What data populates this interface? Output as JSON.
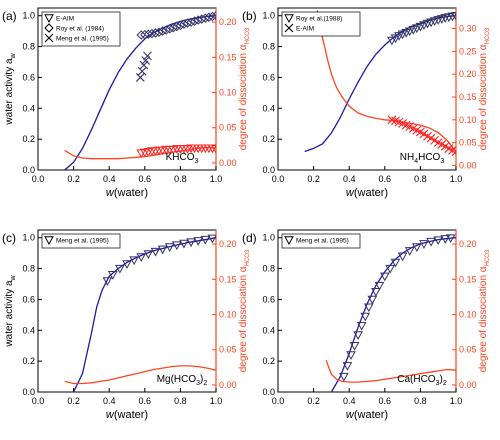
{
  "figure": {
    "colors": {
      "model": "#1a1aaa",
      "dissociation": "#ff4422",
      "axis": "#000000",
      "right_axis": "#ff4422",
      "marker_left": "#333366",
      "marker_right": "#ff2222"
    }
  },
  "chart_data": [
    {
      "type": "line",
      "panel_label": "(a)",
      "compound": "KHCO",
      "compound_sub": "3",
      "xlabel_italic": "w",
      "xlabel_rest": "(water)",
      "ylabel": "water activity a",
      "ylabel_sub": "w",
      "y2label": "degree of dissociation  α",
      "y2label_sub": "HCO3",
      "xlim": [
        0.0,
        1.0
      ],
      "ylim": [
        0.0,
        1.05
      ],
      "y2lim": [
        -0.01,
        0.22
      ],
      "xticks": [
        "0.0",
        "0.2",
        "0.4",
        "0.6",
        "0.8",
        "1.0"
      ],
      "yticks": [
        "0.0",
        "0.2",
        "0.4",
        "0.6",
        "0.8",
        "1.0"
      ],
      "y2ticks": [
        "0.00",
        "0.05",
        "0.10",
        "0.15",
        "0.20"
      ],
      "legend": [
        {
          "marker": "triangle-down",
          "label": "E-AIM"
        },
        {
          "marker": "diamond",
          "label": "Roy et al. (1984)"
        },
        {
          "marker": "cross",
          "label": "Meng et al. (1995)"
        }
      ],
      "series": [
        {
          "kind": "model_aw",
          "x": [
            0.15,
            0.2,
            0.25,
            0.3,
            0.35,
            0.4,
            0.45,
            0.5,
            0.55,
            0.6,
            0.65,
            0.7,
            0.75,
            0.8,
            0.85,
            0.9,
            0.95,
            1.0
          ],
          "y": [
            0.0,
            0.05,
            0.14,
            0.26,
            0.39,
            0.52,
            0.63,
            0.72,
            0.79,
            0.85,
            0.89,
            0.92,
            0.945,
            0.963,
            0.977,
            0.988,
            0.995,
            1.0
          ]
        },
        {
          "kind": "model_alpha",
          "x": [
            0.15,
            0.2,
            0.25,
            0.3,
            0.35,
            0.4,
            0.45,
            0.5,
            0.55,
            0.6,
            0.65,
            0.7,
            0.75,
            0.8,
            0.85,
            0.9,
            0.95,
            1.0
          ],
          "y": [
            0.018,
            0.01,
            0.007,
            0.006,
            0.006,
            0.006,
            0.006,
            0.007,
            0.008,
            0.009,
            0.011,
            0.013,
            0.015,
            0.017,
            0.019,
            0.021,
            0.022,
            0.021
          ]
        },
        {
          "kind": "markers_aw",
          "marker": "diamond",
          "x": [
            0.58,
            0.6,
            0.62,
            0.64,
            0.66,
            0.68,
            0.7,
            0.72,
            0.74,
            0.76,
            0.78,
            0.8,
            0.82,
            0.84,
            0.86,
            0.88,
            0.9,
            0.92,
            0.94,
            0.96,
            0.98,
            1.0
          ],
          "y": [
            0.875,
            0.877,
            0.88,
            0.884,
            0.888,
            0.893,
            0.9,
            0.907,
            0.915,
            0.922,
            0.93,
            0.937,
            0.945,
            0.952,
            0.958,
            0.965,
            0.972,
            0.978,
            0.984,
            0.99,
            0.995,
            1.0
          ]
        },
        {
          "kind": "markers_aw",
          "marker": "cross",
          "x": [
            0.575,
            0.585,
            0.595,
            0.605,
            0.615
          ],
          "y": [
            0.6,
            0.64,
            0.68,
            0.71,
            0.74
          ]
        },
        {
          "kind": "markers_alpha",
          "marker": "triangle-down",
          "x": [
            0.58,
            0.6,
            0.62,
            0.64,
            0.66,
            0.68,
            0.7,
            0.72,
            0.74,
            0.76,
            0.78,
            0.8,
            0.82,
            0.84,
            0.86,
            0.88,
            0.9,
            0.92,
            0.94,
            0.96,
            0.98,
            1.0
          ],
          "y": [
            0.014,
            0.015,
            0.016,
            0.017,
            0.017,
            0.018,
            0.018,
            0.019,
            0.019,
            0.019,
            0.02,
            0.02,
            0.02,
            0.02,
            0.021,
            0.021,
            0.021,
            0.021,
            0.021,
            0.021,
            0.021,
            0.02
          ]
        }
      ]
    },
    {
      "type": "line",
      "panel_label": "(b)",
      "compound": "NH",
      "compound_sub": "4",
      "compound_rest": "HCO",
      "compound_sub2": "3",
      "xlabel_italic": "w",
      "xlabel_rest": "(water)",
      "ylabel": "",
      "y2label": "degree of dissociation  α",
      "y2label_sub": "HCO3",
      "xlim": [
        0.0,
        1.0
      ],
      "ylim": [
        0.0,
        1.05
      ],
      "y2lim": [
        -0.01,
        0.345
      ],
      "xticks": [
        "0.0",
        "0.2",
        "0.4",
        "0.6",
        "0.8",
        "1.0"
      ],
      "yticks": [
        "0.0",
        "0.2",
        "0.4",
        "0.6",
        "0.8",
        "1.0"
      ],
      "y2ticks": [
        "0.00",
        "0.05",
        "0.10",
        "0.15",
        "0.20",
        "0.25",
        "0.30"
      ],
      "legend": [
        {
          "marker": "triangle-down",
          "label": "Roy et al.(1988)"
        },
        {
          "marker": "cross",
          "label": "E-AIM"
        }
      ],
      "series": [
        {
          "kind": "model_aw",
          "x": [
            0.15,
            0.2,
            0.25,
            0.3,
            0.35,
            0.4,
            0.45,
            0.5,
            0.55,
            0.6,
            0.65,
            0.7,
            0.75,
            0.8,
            0.85,
            0.9,
            0.95,
            1.0
          ],
          "y": [
            0.12,
            0.14,
            0.17,
            0.24,
            0.34,
            0.46,
            0.57,
            0.67,
            0.75,
            0.81,
            0.86,
            0.9,
            0.93,
            0.95,
            0.97,
            0.985,
            0.995,
            1.0
          ]
        },
        {
          "kind": "model_alpha",
          "x": [
            0.22,
            0.25,
            0.28,
            0.3,
            0.33,
            0.36,
            0.4,
            0.45,
            0.5,
            0.55,
            0.6,
            0.65,
            0.7,
            0.75,
            0.8,
            0.85,
            0.9,
            0.95,
            1.0
          ],
          "y": [
            0.34,
            0.28,
            0.23,
            0.2,
            0.17,
            0.15,
            0.13,
            0.115,
            0.108,
            0.103,
            0.1,
            0.098,
            0.095,
            0.092,
            0.088,
            0.082,
            0.072,
            0.055,
            0.03
          ]
        },
        {
          "kind": "markers_aw",
          "marker": "triangle-down",
          "x": [
            0.64,
            0.66,
            0.68,
            0.7,
            0.72,
            0.74,
            0.76,
            0.78,
            0.8,
            0.82,
            0.84,
            0.86,
            0.88,
            0.9,
            0.92,
            0.94,
            0.96,
            0.98,
            1.0
          ],
          "y": [
            0.84,
            0.855,
            0.87,
            0.88,
            0.89,
            0.9,
            0.91,
            0.92,
            0.93,
            0.94,
            0.95,
            0.958,
            0.966,
            0.973,
            0.98,
            0.986,
            0.991,
            0.996,
            1.0
          ]
        },
        {
          "kind": "markers_alpha",
          "marker": "cross",
          "x": [
            0.64,
            0.66,
            0.68,
            0.7,
            0.72,
            0.74,
            0.76,
            0.78,
            0.8,
            0.82,
            0.84,
            0.86,
            0.88,
            0.9,
            0.92,
            0.94,
            0.96,
            0.98,
            1.0
          ],
          "y": [
            0.1,
            0.098,
            0.095,
            0.092,
            0.088,
            0.085,
            0.081,
            0.077,
            0.073,
            0.069,
            0.064,
            0.06,
            0.055,
            0.05,
            0.046,
            0.042,
            0.037,
            0.033,
            0.03
          ]
        }
      ]
    },
    {
      "type": "line",
      "panel_label": "(c)",
      "compound": "Mg(HCO",
      "compound_sub": "3",
      "compound_rest": ")",
      "compound_sub2": "2",
      "xlabel_italic": "w",
      "xlabel_rest": "(water)",
      "ylabel": "water activity a",
      "ylabel_sub": "w",
      "y2label": "degree of dissociation  α",
      "y2label_sub": "HCO3",
      "xlim": [
        0.0,
        1.0
      ],
      "ylim": [
        0.0,
        1.05
      ],
      "y2lim": [
        -0.01,
        0.22
      ],
      "xticks": [
        "0.0",
        "0.2",
        "0.4",
        "0.6",
        "0.8",
        "1.0"
      ],
      "yticks": [
        "0.0",
        "0.2",
        "0.4",
        "0.6",
        "0.8",
        "1.0"
      ],
      "y2ticks": [
        "0.00",
        "0.05",
        "0.10",
        "0.15",
        "0.20"
      ],
      "legend": [
        {
          "marker": "triangle-down",
          "label": "Meng et al. (1995)"
        }
      ],
      "series": [
        {
          "kind": "model_aw",
          "x": [
            0.2,
            0.25,
            0.3,
            0.33,
            0.36,
            0.4,
            0.45,
            0.5,
            0.55,
            0.6,
            0.65,
            0.7,
            0.75,
            0.8,
            0.85,
            0.9,
            0.95,
            1.0
          ],
          "y": [
            0.0,
            0.12,
            0.38,
            0.55,
            0.66,
            0.75,
            0.8,
            0.84,
            0.87,
            0.895,
            0.915,
            0.93,
            0.945,
            0.958,
            0.97,
            0.98,
            0.99,
            1.0
          ]
        },
        {
          "kind": "model_alpha",
          "x": [
            0.15,
            0.2,
            0.25,
            0.3,
            0.35,
            0.4,
            0.45,
            0.5,
            0.55,
            0.6,
            0.65,
            0.7,
            0.75,
            0.8,
            0.85,
            0.9,
            0.95,
            1.0
          ],
          "y": [
            0.005,
            0.002,
            0.002,
            0.003,
            0.005,
            0.007,
            0.01,
            0.013,
            0.016,
            0.019,
            0.022,
            0.024,
            0.026,
            0.027,
            0.027,
            0.026,
            0.024,
            0.021
          ]
        },
        {
          "kind": "markers_aw",
          "marker": "triangle-down",
          "x": [
            0.39,
            0.42,
            0.46,
            0.5,
            0.54,
            0.58,
            0.62,
            0.66,
            0.7,
            0.74,
            0.78,
            0.82,
            0.86,
            0.9,
            0.94,
            0.98
          ],
          "y": [
            0.72,
            0.76,
            0.8,
            0.83,
            0.855,
            0.875,
            0.895,
            0.91,
            0.925,
            0.94,
            0.952,
            0.963,
            0.972,
            0.98,
            0.988,
            0.996
          ]
        }
      ]
    },
    {
      "type": "line",
      "panel_label": "(d)",
      "compound": "Ca(HCO",
      "compound_sub": "3",
      "compound_rest": ")",
      "compound_sub2": "2",
      "xlabel_italic": "w",
      "xlabel_rest": "(water)",
      "ylabel": "",
      "y2label": "degree of dissociation  α",
      "y2label_sub": "HCO3",
      "xlim": [
        0.0,
        1.0
      ],
      "ylim": [
        0.0,
        1.05
      ],
      "y2lim": [
        -0.01,
        0.22
      ],
      "xticks": [
        "0.0",
        "0.2",
        "0.4",
        "0.6",
        "0.8",
        "1.0"
      ],
      "yticks": [
        "0.0",
        "0.2",
        "0.4",
        "0.6",
        "0.8",
        "1.0"
      ],
      "y2ticks": [
        "0.00",
        "0.05",
        "0.10",
        "0.15",
        "0.20"
      ],
      "legend": [
        {
          "marker": "triangle-down",
          "label": "Meng et al. (1995)"
        }
      ],
      "series": [
        {
          "kind": "model_aw",
          "x": [
            0.3,
            0.35,
            0.4,
            0.45,
            0.5,
            0.55,
            0.6,
            0.65,
            0.7,
            0.75,
            0.8,
            0.85,
            0.9,
            0.95,
            1.0
          ],
          "y": [
            0.0,
            0.1,
            0.25,
            0.42,
            0.57,
            0.69,
            0.78,
            0.85,
            0.9,
            0.935,
            0.96,
            0.975,
            0.988,
            0.995,
            1.0
          ]
        },
        {
          "kind": "model_alpha",
          "x": [
            0.27,
            0.3,
            0.33,
            0.36,
            0.4,
            0.45,
            0.5,
            0.55,
            0.6,
            0.65,
            0.7,
            0.75,
            0.8,
            0.85,
            0.9,
            0.95,
            1.0
          ],
          "y": [
            0.035,
            0.015,
            0.008,
            0.005,
            0.004,
            0.004,
            0.005,
            0.006,
            0.008,
            0.01,
            0.012,
            0.014,
            0.016,
            0.018,
            0.02,
            0.022,
            0.021
          ]
        },
        {
          "kind": "markers_aw",
          "marker": "triangle-down",
          "x": [
            0.37,
            0.39,
            0.41,
            0.43,
            0.45,
            0.47,
            0.49,
            0.51,
            0.53,
            0.55,
            0.57,
            0.6,
            0.63,
            0.66,
            0.7,
            0.74,
            0.78,
            0.82,
            0.86,
            0.9,
            0.94,
            0.97
          ],
          "y": [
            0.1,
            0.17,
            0.24,
            0.3,
            0.37,
            0.43,
            0.49,
            0.55,
            0.6,
            0.65,
            0.69,
            0.75,
            0.8,
            0.84,
            0.88,
            0.915,
            0.94,
            0.96,
            0.975,
            0.985,
            0.993,
            0.998
          ]
        }
      ]
    }
  ]
}
